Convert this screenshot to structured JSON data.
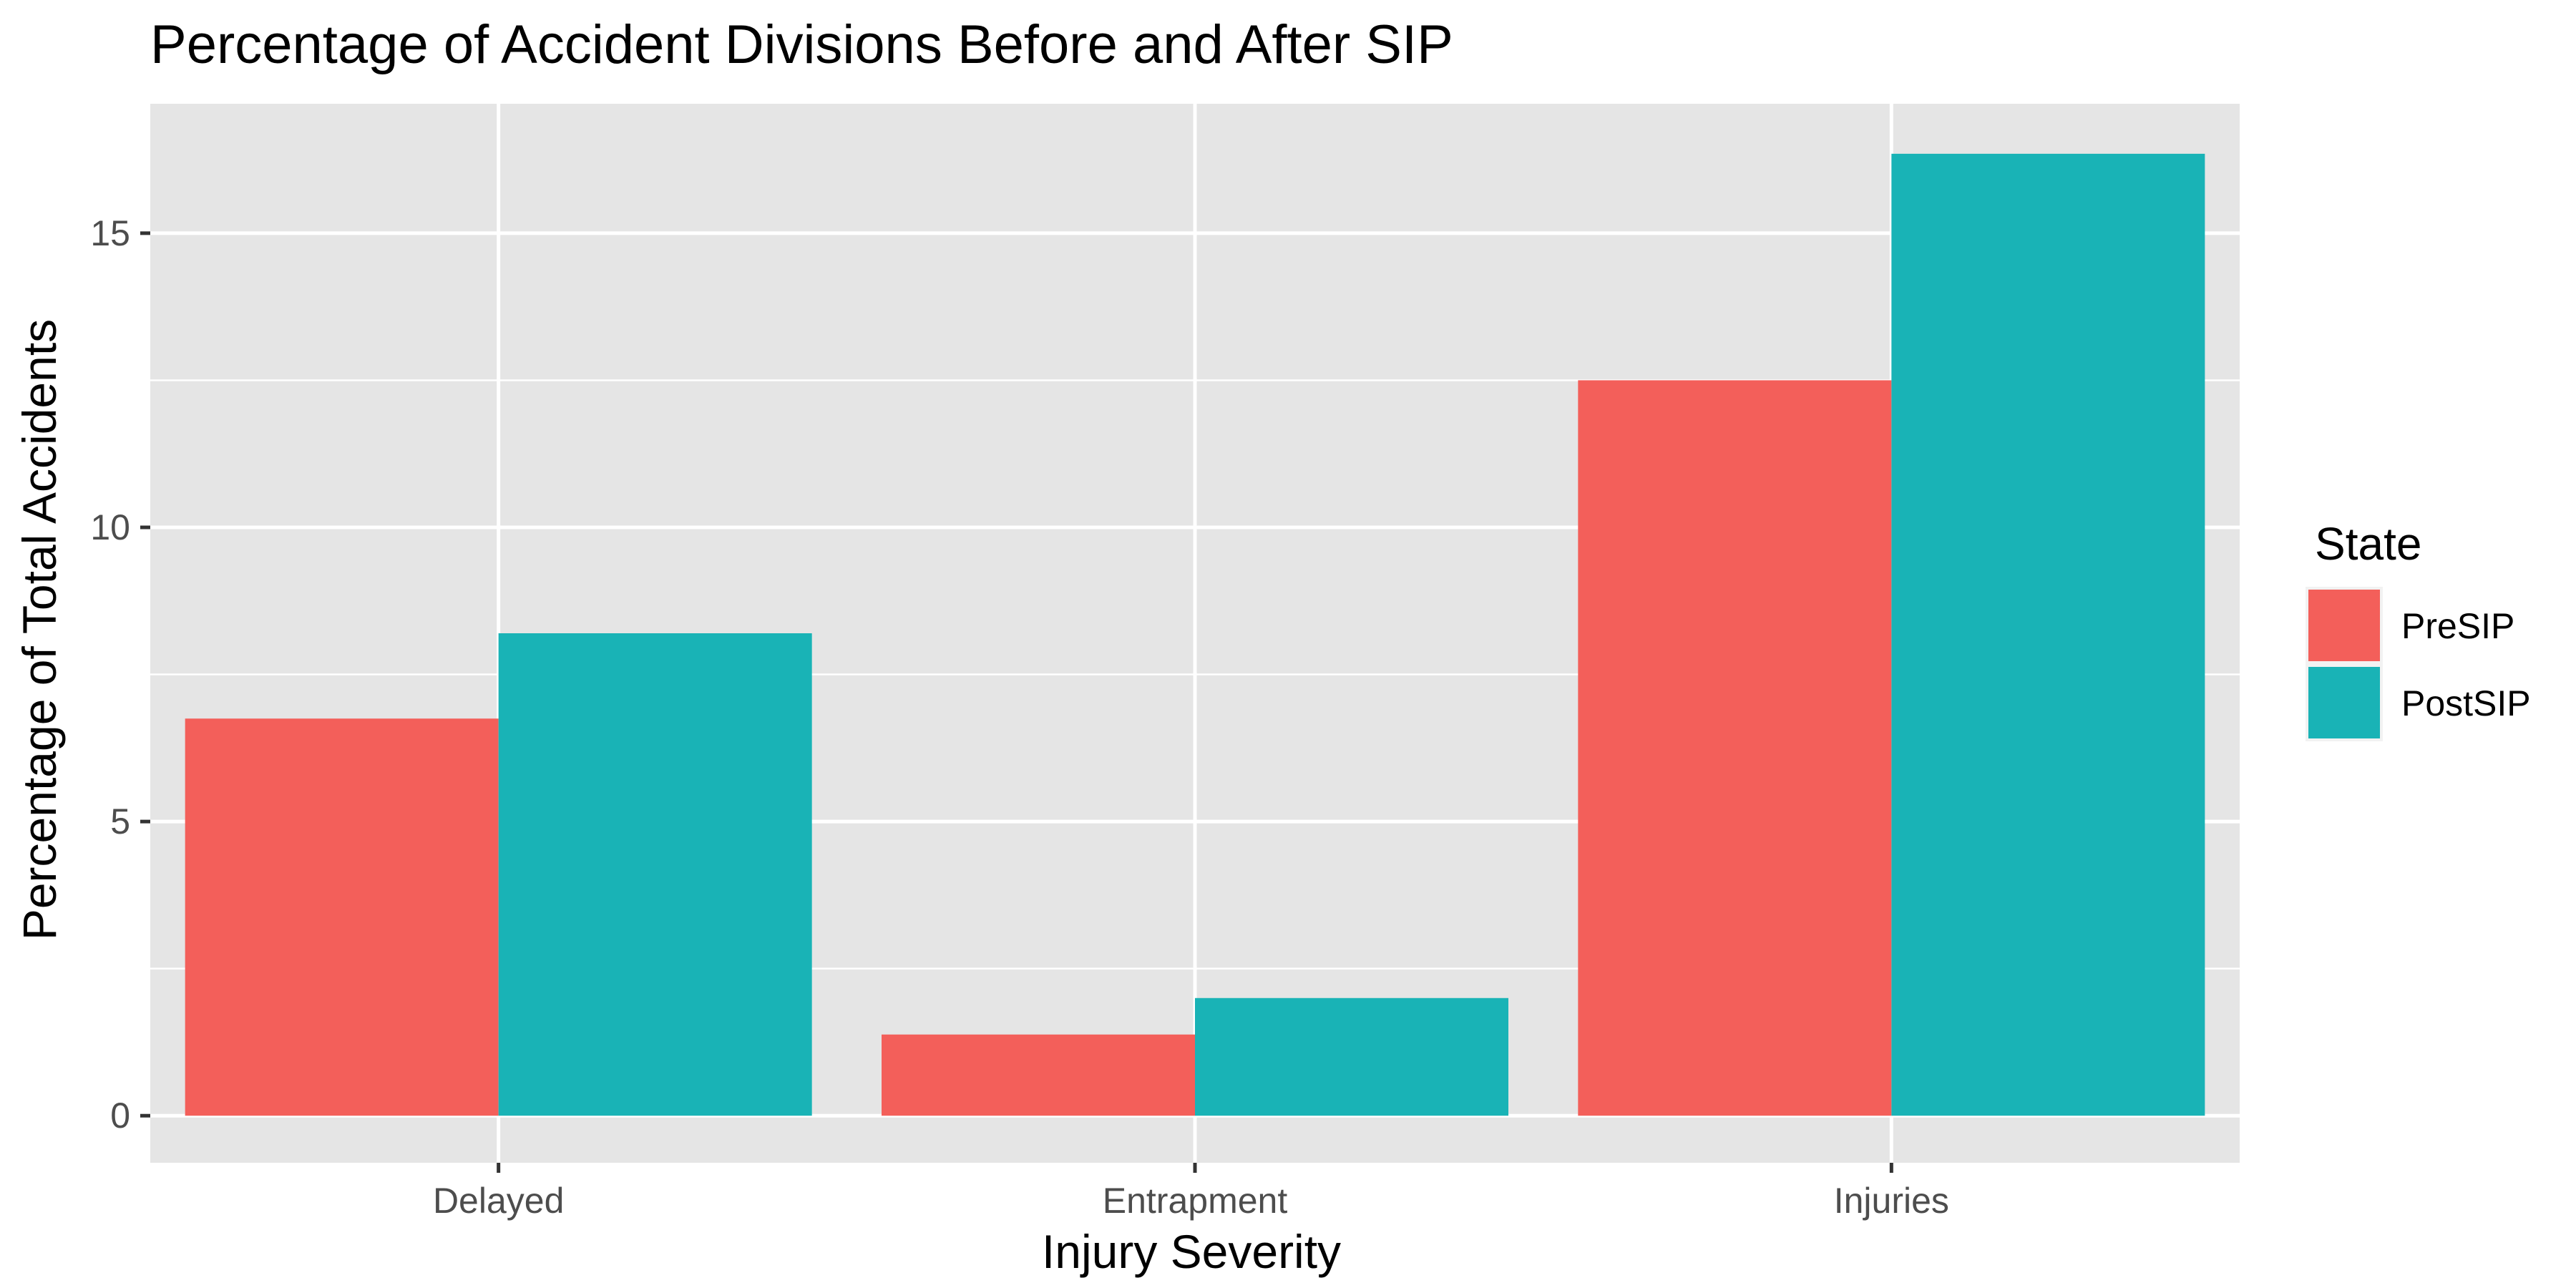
{
  "chart_data": {
    "type": "bar",
    "title": "Percentage of Accident Divisions Before and After SIP",
    "xlabel": "Injury Severity",
    "ylabel": "Percentage of Total Accidents",
    "categories": [
      "Delayed",
      "Entrapment",
      "Injuries"
    ],
    "series": [
      {
        "name": "PreSIP",
        "color": "#f35f5a",
        "values": [
          6.75,
          1.38,
          12.5
        ]
      },
      {
        "name": "PostSIP",
        "color": "#19b3b6",
        "values": [
          8.2,
          2.0,
          16.35
        ]
      }
    ],
    "ylim": [
      -0.8,
      17.2
    ],
    "yticks": [
      0,
      5,
      10,
      15
    ],
    "grid": true,
    "legend": {
      "title": "State",
      "position": "right"
    },
    "panel_background": "#e5e5e5",
    "grid_color": "#ffffff"
  }
}
